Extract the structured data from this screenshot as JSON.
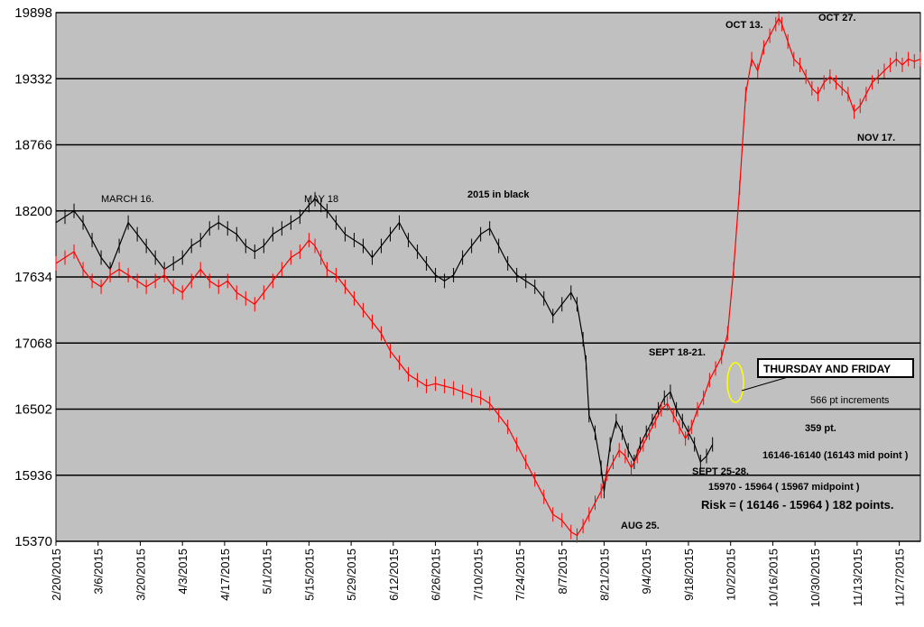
{
  "chart_data": {
    "type": "line",
    "subtype": "ohlc-bars",
    "ylim": [
      15370,
      19898
    ],
    "yticks": [
      15370,
      15936,
      16502,
      17068,
      17634,
      18200,
      18766,
      19332,
      19898
    ],
    "x_ticks": [
      "2/20/2015",
      "3/6/2015",
      "3/20/2015",
      "4/3/2015",
      "4/17/2015",
      "5/1/2015",
      "5/15/2015",
      "5/29/2015",
      "6/12/2015",
      "6/26/2015",
      "7/10/2015",
      "7/24/2015",
      "8/7/2015",
      "8/21/2015",
      "9/4/2015",
      "9/18/2015",
      "10/2/2015",
      "10/16/2015",
      "10/30/2015",
      "11/13/2015",
      "11/27/2015"
    ],
    "x_range_days": [
      0,
      287
    ],
    "grid": "horizontal",
    "plot_background": "#c0c0c0",
    "series": [
      {
        "color": "#000000",
        "points": [
          [
            0,
            18100
          ],
          [
            3,
            18150
          ],
          [
            6,
            18200
          ],
          [
            9,
            18100
          ],
          [
            12,
            17950
          ],
          [
            15,
            17800
          ],
          [
            18,
            17700
          ],
          [
            21,
            17900
          ],
          [
            24,
            18100
          ],
          [
            27,
            18000
          ],
          [
            30,
            17900
          ],
          [
            33,
            17800
          ],
          [
            36,
            17700
          ],
          [
            39,
            17750
          ],
          [
            42,
            17800
          ],
          [
            45,
            17900
          ],
          [
            48,
            17950
          ],
          [
            51,
            18050
          ],
          [
            54,
            18100
          ],
          [
            57,
            18050
          ],
          [
            60,
            18000
          ],
          [
            63,
            17900
          ],
          [
            66,
            17850
          ],
          [
            69,
            17900
          ],
          [
            72,
            18000
          ],
          [
            75,
            18050
          ],
          [
            78,
            18100
          ],
          [
            81,
            18150
          ],
          [
            84,
            18250
          ],
          [
            86,
            18300
          ],
          [
            88,
            18250
          ],
          [
            90,
            18200
          ],
          [
            93,
            18100
          ],
          [
            96,
            18000
          ],
          [
            99,
            17950
          ],
          [
            102,
            17900
          ],
          [
            105,
            17800
          ],
          [
            108,
            17900
          ],
          [
            111,
            18000
          ],
          [
            114,
            18100
          ],
          [
            117,
            17950
          ],
          [
            120,
            17850
          ],
          [
            123,
            17750
          ],
          [
            126,
            17650
          ],
          [
            129,
            17600
          ],
          [
            132,
            17650
          ],
          [
            135,
            17800
          ],
          [
            138,
            17900
          ],
          [
            141,
            18000
          ],
          [
            144,
            18050
          ],
          [
            147,
            17900
          ],
          [
            150,
            17750
          ],
          [
            153,
            17650
          ],
          [
            156,
            17600
          ],
          [
            159,
            17550
          ],
          [
            162,
            17450
          ],
          [
            165,
            17300
          ],
          [
            168,
            17400
          ],
          [
            171,
            17500
          ],
          [
            173,
            17400
          ],
          [
            175,
            17100
          ],
          [
            176,
            16900
          ],
          [
            177,
            16450
          ],
          [
            179,
            16300
          ],
          [
            181,
            16000
          ],
          [
            182,
            15800
          ],
          [
            184,
            16200
          ],
          [
            186,
            16400
          ],
          [
            188,
            16300
          ],
          [
            190,
            16150
          ],
          [
            192,
            16050
          ],
          [
            194,
            16200
          ],
          [
            196,
            16300
          ],
          [
            198,
            16400
          ],
          [
            200,
            16500
          ],
          [
            202,
            16600
          ],
          [
            204,
            16650
          ],
          [
            206,
            16500
          ],
          [
            208,
            16400
          ],
          [
            210,
            16300
          ],
          [
            212,
            16200
          ],
          [
            214,
            16050
          ],
          [
            216,
            16100
          ],
          [
            218,
            16200
          ]
        ]
      },
      {
        "color": "#ff0000",
        "points": [
          [
            0,
            17750
          ],
          [
            3,
            17800
          ],
          [
            6,
            17850
          ],
          [
            9,
            17700
          ],
          [
            12,
            17600
          ],
          [
            15,
            17550
          ],
          [
            18,
            17650
          ],
          [
            21,
            17700
          ],
          [
            24,
            17650
          ],
          [
            27,
            17600
          ],
          [
            30,
            17550
          ],
          [
            33,
            17600
          ],
          [
            36,
            17650
          ],
          [
            39,
            17550
          ],
          [
            42,
            17500
          ],
          [
            45,
            17600
          ],
          [
            48,
            17700
          ],
          [
            51,
            17600
          ],
          [
            54,
            17550
          ],
          [
            57,
            17600
          ],
          [
            60,
            17500
          ],
          [
            63,
            17450
          ],
          [
            66,
            17400
          ],
          [
            69,
            17500
          ],
          [
            72,
            17600
          ],
          [
            75,
            17700
          ],
          [
            78,
            17800
          ],
          [
            81,
            17850
          ],
          [
            84,
            17950
          ],
          [
            86,
            17900
          ],
          [
            88,
            17800
          ],
          [
            90,
            17700
          ],
          [
            93,
            17650
          ],
          [
            96,
            17550
          ],
          [
            99,
            17450
          ],
          [
            102,
            17350
          ],
          [
            105,
            17250
          ],
          [
            108,
            17150
          ],
          [
            111,
            17000
          ],
          [
            114,
            16900
          ],
          [
            117,
            16800
          ],
          [
            120,
            16750
          ],
          [
            123,
            16700
          ],
          [
            126,
            16720
          ],
          [
            129,
            16700
          ],
          [
            132,
            16680
          ],
          [
            135,
            16650
          ],
          [
            138,
            16620
          ],
          [
            141,
            16600
          ],
          [
            144,
            16550
          ],
          [
            147,
            16450
          ],
          [
            150,
            16350
          ],
          [
            153,
            16200
          ],
          [
            156,
            16050
          ],
          [
            159,
            15900
          ],
          [
            162,
            15750
          ],
          [
            165,
            15600
          ],
          [
            168,
            15550
          ],
          [
            171,
            15450
          ],
          [
            173,
            15420
          ],
          [
            175,
            15500
          ],
          [
            177,
            15600
          ],
          [
            179,
            15700
          ],
          [
            181,
            15800
          ],
          [
            183,
            15950
          ],
          [
            185,
            16050
          ],
          [
            187,
            16150
          ],
          [
            189,
            16100
          ],
          [
            191,
            16000
          ],
          [
            193,
            16100
          ],
          [
            195,
            16200
          ],
          [
            197,
            16300
          ],
          [
            199,
            16400
          ],
          [
            201,
            16500
          ],
          [
            203,
            16550
          ],
          [
            205,
            16450
          ],
          [
            207,
            16350
          ],
          [
            209,
            16250
          ],
          [
            211,
            16350
          ],
          [
            213,
            16500
          ],
          [
            215,
            16600
          ],
          [
            217,
            16750
          ],
          [
            219,
            16850
          ],
          [
            221,
            16950
          ],
          [
            223,
            17150
          ],
          [
            225,
            17700
          ],
          [
            227,
            18400
          ],
          [
            229,
            19200
          ],
          [
            231,
            19500
          ],
          [
            233,
            19400
          ],
          [
            235,
            19600
          ],
          [
            237,
            19700
          ],
          [
            239,
            19800
          ],
          [
            240,
            19850
          ],
          [
            241,
            19800
          ],
          [
            243,
            19650
          ],
          [
            245,
            19500
          ],
          [
            247,
            19450
          ],
          [
            249,
            19350
          ],
          [
            251,
            19250
          ],
          [
            253,
            19200
          ],
          [
            255,
            19300
          ],
          [
            257,
            19350
          ],
          [
            259,
            19300
          ],
          [
            261,
            19250
          ],
          [
            263,
            19200
          ],
          [
            265,
            19050
          ],
          [
            267,
            19100
          ],
          [
            269,
            19200
          ],
          [
            271,
            19300
          ],
          [
            273,
            19350
          ],
          [
            275,
            19400
          ],
          [
            277,
            19450
          ],
          [
            279,
            19500
          ],
          [
            281,
            19450
          ],
          [
            283,
            19500
          ],
          [
            285,
            19480
          ],
          [
            287,
            19500
          ]
        ]
      }
    ],
    "annotations": {
      "march16": "MARCH 16.",
      "may18": "MAY 18",
      "in_black": "2015 in black",
      "oct13": "OCT 13.",
      "oct27": "OCT 27.",
      "nov17": "NOV 17.",
      "sept1821": "SEPT 18-21.",
      "thursday_friday": "THURSDAY AND FRIDAY",
      "increments": "566 pt increments",
      "pt359": "359 pt.",
      "range1": "16146-16140 (16143 mid point )",
      "sept2528": "SEPT 25-28.",
      "range2": "15970 - 15964 ( 15967 midpoint )",
      "risk": "Risk = ( 16146 - 15964 ) 182 points.",
      "aug25": "AUG 25."
    }
  }
}
